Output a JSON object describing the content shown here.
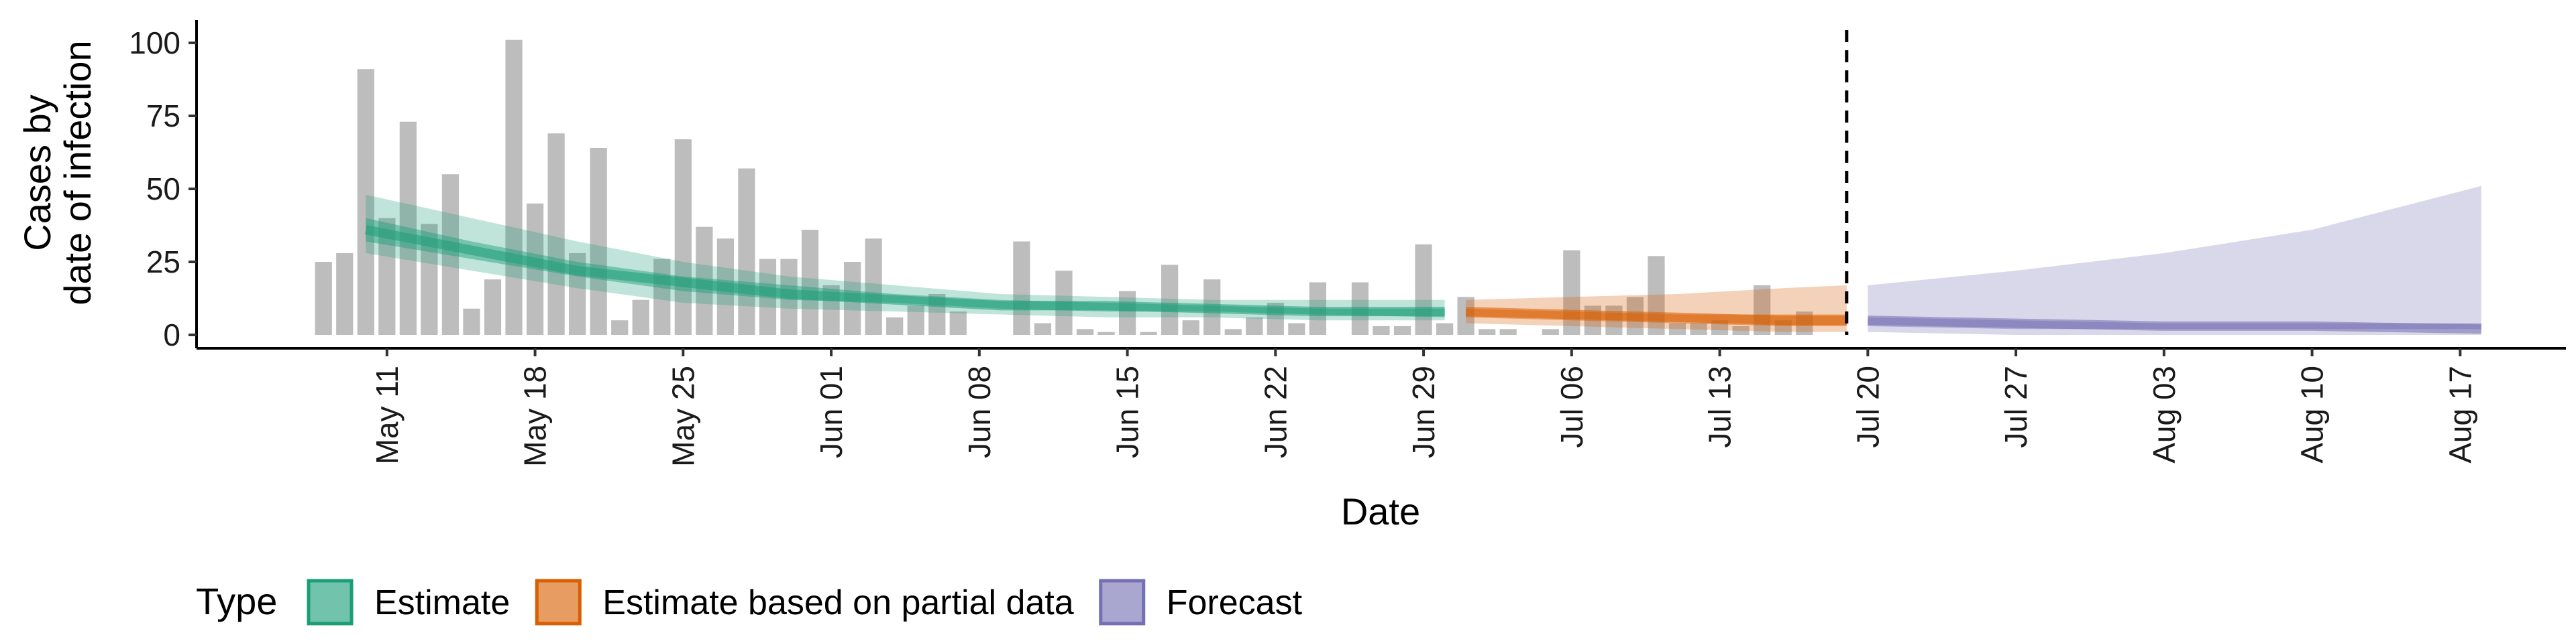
{
  "chart_data": {
    "type": "bar",
    "xlabel": "Date",
    "ylabel_lines": [
      "Cases by",
      "date of infection"
    ],
    "ylim": [
      0,
      105
    ],
    "y_ticks": [
      0,
      25,
      50,
      75,
      100
    ],
    "x_tick_labels": [
      "May 11",
      "May 18",
      "May 25",
      "Jun 01",
      "Jun 08",
      "Jun 15",
      "Jun 22",
      "Jun 29",
      "Jul 06",
      "Jul 13",
      "Jul 20",
      "Jul 27",
      "Aug 03",
      "Aug 10",
      "Aug 17"
    ],
    "x_tick_dates": [
      "2020-05-11",
      "2020-05-18",
      "2020-05-25",
      "2020-06-01",
      "2020-06-08",
      "2020-06-15",
      "2020-06-22",
      "2020-06-29",
      "2020-07-06",
      "2020-07-13",
      "2020-07-20",
      "2020-07-27",
      "2020-08-03",
      "2020-08-10",
      "2020-08-17"
    ],
    "xlim": [
      "2020-05-02",
      "2020-08-22"
    ],
    "bar_color": "#bdbdbd",
    "observed_cases": {
      "dates": [
        "2020-05-08",
        "2020-05-09",
        "2020-05-10",
        "2020-05-11",
        "2020-05-12",
        "2020-05-13",
        "2020-05-14",
        "2020-05-15",
        "2020-05-16",
        "2020-05-17",
        "2020-05-18",
        "2020-05-19",
        "2020-05-20",
        "2020-05-21",
        "2020-05-22",
        "2020-05-23",
        "2020-05-24",
        "2020-05-25",
        "2020-05-26",
        "2020-05-27",
        "2020-05-28",
        "2020-05-29",
        "2020-05-30",
        "2020-05-31",
        "2020-06-01",
        "2020-06-02",
        "2020-06-03",
        "2020-06-04",
        "2020-06-05",
        "2020-06-06",
        "2020-06-07",
        "2020-06-08",
        "2020-06-09",
        "2020-06-10",
        "2020-06-11",
        "2020-06-12",
        "2020-06-13",
        "2020-06-14",
        "2020-06-15",
        "2020-06-16",
        "2020-06-17",
        "2020-06-18",
        "2020-06-19",
        "2020-06-20",
        "2020-06-21",
        "2020-06-22",
        "2020-06-23",
        "2020-06-24",
        "2020-06-25",
        "2020-06-26",
        "2020-06-27",
        "2020-06-28",
        "2020-06-29",
        "2020-06-30",
        "2020-07-01",
        "2020-07-02",
        "2020-07-03",
        "2020-07-04",
        "2020-07-05",
        "2020-07-06",
        "2020-07-07",
        "2020-07-08",
        "2020-07-09",
        "2020-07-10",
        "2020-07-11",
        "2020-07-12",
        "2020-07-13",
        "2020-07-14",
        "2020-07-15",
        "2020-07-16",
        "2020-07-17",
        "2020-07-18"
      ],
      "values": [
        25,
        28,
        91,
        40,
        73,
        38,
        55,
        9,
        19,
        101,
        45,
        69,
        28,
        64,
        5,
        12,
        26,
        67,
        37,
        33,
        57,
        26,
        26,
        36,
        17,
        25,
        33,
        6,
        10,
        14,
        8,
        0,
        0,
        32,
        4,
        22,
        2,
        1,
        15,
        1,
        24,
        5,
        19,
        2,
        6,
        11,
        4,
        18,
        0,
        18,
        3,
        3,
        31,
        4,
        13,
        2,
        2,
        0,
        2,
        29,
        10,
        10,
        13,
        27,
        4,
        4,
        5,
        3,
        17,
        5,
        8,
        0
      ]
    },
    "series": [
      {
        "name": "Estimate",
        "color": "#1b9e77",
        "dates": [
          "2020-05-10",
          "2020-05-15",
          "2020-05-20",
          "2020-05-25",
          "2020-05-30",
          "2020-06-04",
          "2020-06-09",
          "2020-06-14",
          "2020-06-19",
          "2020-06-24",
          "2020-06-30"
        ],
        "median": [
          36,
          29,
          22,
          18,
          14,
          12,
          10,
          10,
          9,
          8,
          8
        ],
        "inner_lower": [
          32,
          26,
          20,
          15,
          12,
          11,
          9,
          8,
          8,
          7,
          6
        ],
        "inner_upper": [
          40,
          32,
          25,
          20,
          17,
          14,
          12,
          11,
          10,
          9,
          9
        ],
        "outer_lower": [
          28,
          22,
          16,
          11,
          9,
          8,
          7,
          6,
          6,
          5,
          5
        ],
        "outer_upper": [
          48,
          40,
          32,
          25,
          20,
          17,
          14,
          13,
          12,
          12,
          12
        ]
      },
      {
        "name": "Estimate based on partial data",
        "color": "#d95f02",
        "dates": [
          "2020-07-01",
          "2020-07-06",
          "2020-07-11",
          "2020-07-16",
          "2020-07-19"
        ],
        "median": [
          8,
          7,
          6,
          5,
          5
        ],
        "inner_lower": [
          6,
          5,
          4,
          3,
          3
        ],
        "inner_upper": [
          9,
          8,
          7,
          7,
          7
        ],
        "outer_lower": [
          4,
          3,
          2,
          1,
          1
        ],
        "outer_upper": [
          12,
          13,
          14,
          16,
          17
        ]
      },
      {
        "name": "Forecast",
        "color": "#7570b3",
        "dates": [
          "2020-07-20",
          "2020-07-27",
          "2020-08-03",
          "2020-08-10",
          "2020-08-18"
        ],
        "median": [
          5,
          4,
          3,
          3,
          2
        ],
        "inner_lower": [
          3,
          2,
          2,
          2,
          2
        ],
        "inner_upper": [
          6,
          5,
          4,
          4,
          4
        ],
        "outer_lower": [
          1,
          0,
          0,
          0,
          0
        ],
        "outer_upper": [
          17,
          22,
          28,
          36,
          51
        ]
      }
    ],
    "vline_date": "2020-07-19",
    "legend": {
      "title": "Type",
      "position": "bottom",
      "entries": [
        "Estimate",
        "Estimate based on partial data",
        "Forecast"
      ]
    },
    "grid": false
  }
}
